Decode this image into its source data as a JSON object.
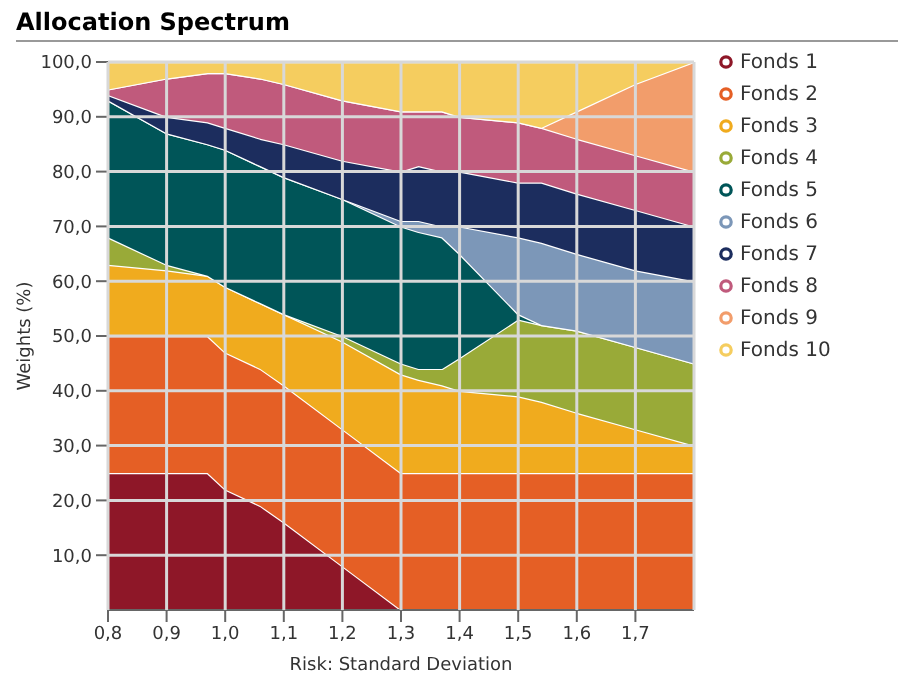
{
  "chart_data": {
    "type": "area",
    "title": "Allocation Spectrum",
    "xlabel": "Risk: Standard Deviation",
    "ylabel": "Weights (%)",
    "stacked": true,
    "x": [
      0.8,
      0.9,
      0.97,
      1.0,
      1.06,
      1.1,
      1.2,
      1.3,
      1.33,
      1.37,
      1.4,
      1.5,
      1.54,
      1.6,
      1.7,
      1.8
    ],
    "series": [
      {
        "name": "Fonds 1",
        "color": "#8e1728",
        "values": [
          25,
          25,
          25,
          22,
          19,
          16,
          8,
          0,
          0,
          0,
          0,
          0,
          0,
          0,
          0,
          0
        ]
      },
      {
        "name": "Fonds 2",
        "color": "#e55f25",
        "values": [
          25,
          25,
          25,
          25,
          25,
          25,
          25,
          25,
          25,
          25,
          25,
          25,
          25,
          25,
          25,
          25
        ]
      },
      {
        "name": "Fonds 3",
        "color": "#f0ab1e",
        "values": [
          13,
          12,
          11,
          12,
          12,
          13,
          16,
          18,
          17,
          16,
          15,
          14,
          13,
          11,
          8,
          5
        ]
      },
      {
        "name": "Fonds 4",
        "color": "#99aa38",
        "values": [
          5,
          1,
          0,
          0,
          0,
          0,
          1,
          2,
          2,
          3,
          6,
          14,
          14,
          15,
          15,
          15
        ]
      },
      {
        "name": "Fonds 5",
        "color": "#005558",
        "values": [
          25,
          24,
          24,
          25,
          25,
          25,
          25,
          25,
          25,
          24,
          19,
          1,
          0,
          0,
          0,
          0
        ]
      },
      {
        "name": "Fonds 6",
        "color": "#7c97b8",
        "values": [
          0,
          0,
          0,
          0,
          0,
          0,
          0,
          1,
          2,
          2,
          5,
          14,
          15,
          14,
          14,
          15
        ]
      },
      {
        "name": "Fonds 7",
        "color": "#1c2d5e",
        "values": [
          1,
          3,
          4,
          4,
          5,
          6,
          7,
          9,
          10,
          10,
          10,
          10,
          11,
          11,
          11,
          10
        ]
      },
      {
        "name": "Fonds 8",
        "color": "#c05a7c",
        "values": [
          1,
          7,
          9,
          10,
          11,
          11,
          11,
          11,
          10,
          11,
          10,
          11,
          10,
          10,
          10,
          10
        ]
      },
      {
        "name": "Fonds 9",
        "color": "#f29d6b",
        "values": [
          0,
          0,
          0,
          0,
          0,
          0,
          0,
          0,
          0,
          0,
          0,
          0,
          0,
          5,
          13,
          20
        ]
      },
      {
        "name": "Fonds 10",
        "color": "#f5cd5f",
        "values": [
          5,
          3,
          2,
          2,
          3,
          4,
          7,
          9,
          9,
          9,
          10,
          11,
          12,
          9,
          4,
          0
        ]
      }
    ],
    "xlim": [
      0.8,
      1.8
    ],
    "xticks": [
      {
        "value": 0.8,
        "label": "0,8"
      },
      {
        "value": 0.9,
        "label": "0,9"
      },
      {
        "value": 1.0,
        "label": "1,0"
      },
      {
        "value": 1.1,
        "label": "1,1"
      },
      {
        "value": 1.2,
        "label": "1,2"
      },
      {
        "value": 1.3,
        "label": "1,3"
      },
      {
        "value": 1.4,
        "label": "1,4"
      },
      {
        "value": 1.5,
        "label": "1,5"
      },
      {
        "value": 1.6,
        "label": "1,6"
      },
      {
        "value": 1.7,
        "label": "1,7"
      }
    ],
    "ylim": [
      0,
      100
    ],
    "yticks": [
      {
        "value": 10,
        "label": "10,0"
      },
      {
        "value": 20,
        "label": "20,0"
      },
      {
        "value": 30,
        "label": "30,0"
      },
      {
        "value": 40,
        "label": "40,0"
      },
      {
        "value": 50,
        "label": "50,0"
      },
      {
        "value": 60,
        "label": "60,0"
      },
      {
        "value": 70,
        "label": "70,0"
      },
      {
        "value": 80,
        "label": "80,0"
      },
      {
        "value": 90,
        "label": "90,0"
      },
      {
        "value": 100,
        "label": "100,0"
      }
    ],
    "grid": true,
    "legend": "right"
  }
}
